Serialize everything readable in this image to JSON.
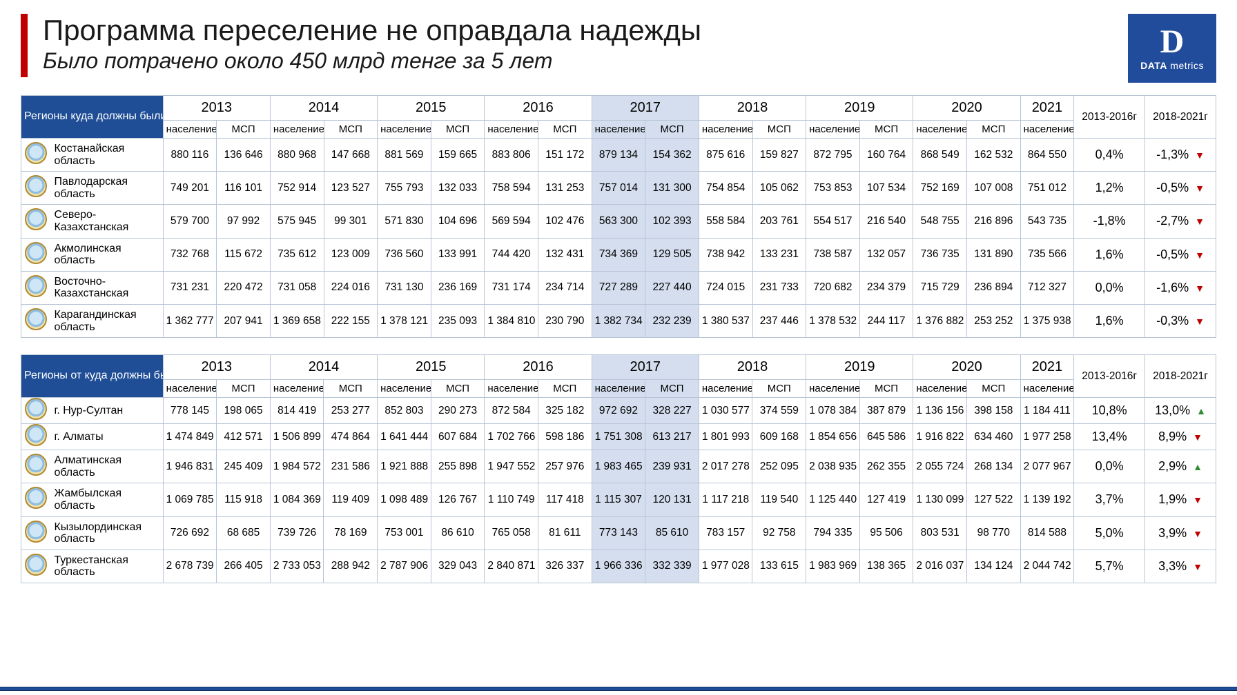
{
  "header": {
    "title": "Программа переселение не оправдала надежды",
    "subtitle": "Было потрачено около 450 млрд тенге за 5 лет",
    "logo_brand": "DATA",
    "logo_brand2": " metrics"
  },
  "columns": {
    "years": [
      "2013",
      "2014",
      "2015",
      "2016",
      "2017",
      "2018",
      "2019",
      "2020",
      "2021"
    ],
    "sub_pop": "население",
    "sub_msp": "МСП",
    "pct1_head": "2013-2016г",
    "pct2_head": "2018-2021г"
  },
  "highlight_year": "2017",
  "tables": [
    {
      "region_head": "Регионы куда должны были переехать",
      "rows": [
        {
          "name": "Костанайская область",
          "v": [
            "880 116",
            "136 646",
            "880 968",
            "147 668",
            "881 569",
            "159 665",
            "883 806",
            "151 172",
            "879 134",
            "154 362",
            "875 616",
            "159 827",
            "872 795",
            "160 764",
            "868 549",
            "162 532",
            "864 550"
          ],
          "p1": "0,4%",
          "p2": "-1,3%",
          "d2": "down"
        },
        {
          "name": "Павлодарская область",
          "v": [
            "749 201",
            "116 101",
            "752 914",
            "123 527",
            "755 793",
            "132 033",
            "758 594",
            "131 253",
            "757 014",
            "131 300",
            "754 854",
            "105 062",
            "753 853",
            "107 534",
            "752 169",
            "107 008",
            "751 012"
          ],
          "p1": "1,2%",
          "p2": "-0,5%",
          "d2": "down"
        },
        {
          "name": "Северо-Казахстанская",
          "v": [
            "579 700",
            "97 992",
            "575 945",
            "99 301",
            "571 830",
            "104 696",
            "569 594",
            "102 476",
            "563 300",
            "102 393",
            "558 584",
            "203 761",
            "554 517",
            "216 540",
            "548 755",
            "216 896",
            "543 735"
          ],
          "p1": "-1,8%",
          "p2": "-2,7%",
          "d2": "down"
        },
        {
          "name": "Акмолинская область",
          "v": [
            "732 768",
            "115 672",
            "735 612",
            "123 009",
            "736 560",
            "133 991",
            "744 420",
            "132 431",
            "734 369",
            "129 505",
            "738 942",
            "133 231",
            "738 587",
            "132 057",
            "736 735",
            "131 890",
            "735 566"
          ],
          "p1": "1,6%",
          "p2": "-0,5%",
          "d2": "down"
        },
        {
          "name": "Восточно-Казахстанская",
          "v": [
            "731 231",
            "220 472",
            "731 058",
            "224 016",
            "731 130",
            "236 169",
            "731 174",
            "234 714",
            "727 289",
            "227 440",
            "724 015",
            "231 733",
            "720 682",
            "234 379",
            "715 729",
            "236 894",
            "712 327"
          ],
          "p1": "0,0%",
          "p2": "-1,6%",
          "d2": "down"
        },
        {
          "name": "Карагандинская область",
          "v": [
            "1 362 777",
            "207 941",
            "1 369 658",
            "222 155",
            "1 378 121",
            "235 093",
            "1 384 810",
            "230 790",
            "1 382 734",
            "232 239",
            "1 380 537",
            "237 446",
            "1 378 532",
            "244 117",
            "1 376 882",
            "253 252",
            "1 375 938"
          ],
          "p1": "1,6%",
          "p2": "-0,3%",
          "d2": "down"
        }
      ]
    },
    {
      "region_head": "Регионы от куда должны были переехать",
      "rows": [
        {
          "name": "г. Нур-Султан",
          "v": [
            "778 145",
            "198 065",
            "814 419",
            "253 277",
            "852 803",
            "290 273",
            "872 584",
            "325 182",
            "972 692",
            "328 227",
            "1 030 577",
            "374 559",
            "1 078 384",
            "387 879",
            "1 136 156",
            "398 158",
            "1 184 411"
          ],
          "p1": "10,8%",
          "p2": "13,0%",
          "d2": "up"
        },
        {
          "name": "г. Алматы",
          "v": [
            "1 474 849",
            "412 571",
            "1 506 899",
            "474 864",
            "1 641 444",
            "607 684",
            "1 702 766",
            "598 186",
            "1 751 308",
            "613 217",
            "1 801 993",
            "609 168",
            "1 854 656",
            "645 586",
            "1 916 822",
            "634 460",
            "1 977 258"
          ],
          "p1": "13,4%",
          "p2": "8,9%",
          "d2": "down"
        },
        {
          "name": "Алматинская область",
          "v": [
            "1 946 831",
            "245 409",
            "1 984 572",
            "231 586",
            "1 921 888",
            "255 898",
            "1 947 552",
            "257 976",
            "1 983 465",
            "239 931",
            "2 017 278",
            "252 095",
            "2 038 935",
            "262 355",
            "2 055 724",
            "268 134",
            "2 077 967"
          ],
          "p1": "0,0%",
          "p2": "2,9%",
          "d2": "up"
        },
        {
          "name": "Жамбылская область",
          "v": [
            "1 069 785",
            "115 918",
            "1 084 369",
            "119 409",
            "1 098 489",
            "126 767",
            "1 110 749",
            "117 418",
            "1 115 307",
            "120 131",
            "1 117 218",
            "119 540",
            "1 125 440",
            "127 419",
            "1 130 099",
            "127 522",
            "1 139 192"
          ],
          "p1": "3,7%",
          "p2": "1,9%",
          "d2": "down"
        },
        {
          "name": "Кызылординская область",
          "v": [
            "726 692",
            "68 685",
            "739 726",
            "78 169",
            "753 001",
            "86 610",
            "765 058",
            "81 611",
            "773 143",
            "85 610",
            "783 157",
            "92 758",
            "794 335",
            "95 506",
            "803 531",
            "98 770",
            "814 588"
          ],
          "p1": "5,0%",
          "p2": "3,9%",
          "d2": "down"
        },
        {
          "name": "Туркестанская область",
          "v": [
            "2 678 739",
            "266 405",
            "2 733 053",
            "288 942",
            "2 787 906",
            "329 043",
            "2 840 871",
            "326 337",
            "1 966 336",
            "332 339",
            "1 977 028",
            "133 615",
            "1 983 969",
            "138 365",
            "2 016 037",
            "134 124",
            "2 044 742"
          ],
          "p1": "5,7%",
          "p2": "3,3%",
          "d2": "down"
        }
      ]
    }
  ]
}
